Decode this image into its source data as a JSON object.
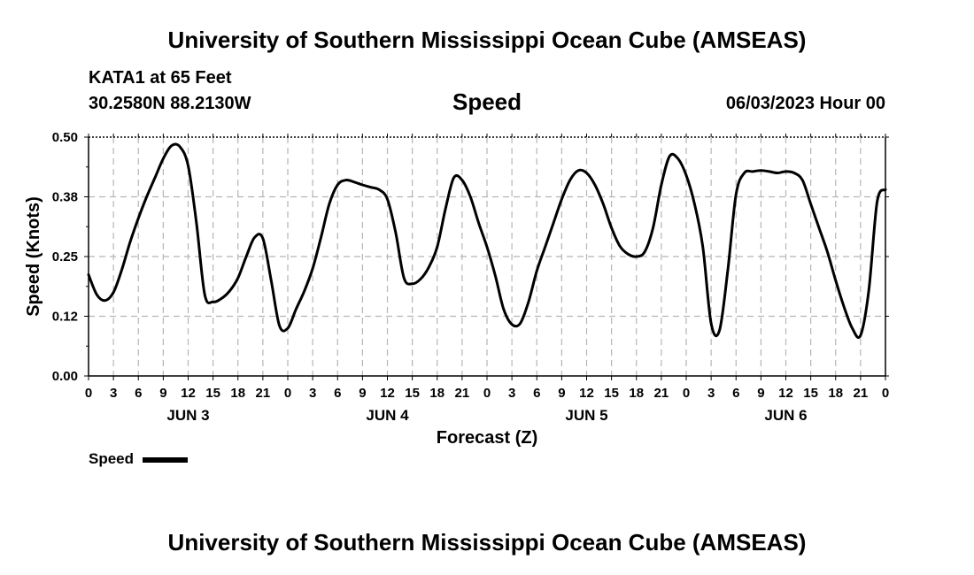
{
  "header": {
    "title": "University of Southern Mississippi Ocean Cube (AMSEAS)",
    "station": "KATA1 at 65 Feet",
    "coords": "30.2580N  88.2130W",
    "parameter": "Speed",
    "run_time": "06/03/2023 Hour 00"
  },
  "footer": {
    "title": "University of Southern Mississippi Ocean Cube (AMSEAS)"
  },
  "legend": {
    "label": "Speed"
  },
  "chart_data": {
    "type": "line",
    "title": "Speed",
    "xlabel": "Forecast (Z)",
    "ylabel": "Speed (Knots)",
    "xlim": [
      0,
      96
    ],
    "ylim": [
      0,
      0.5
    ],
    "grid": true,
    "y_ticks": [
      "0.00",
      "0.12",
      "0.25",
      "0.38",
      "0.50"
    ],
    "x_tick_labels": [
      "0",
      "3",
      "6",
      "9",
      "12",
      "15",
      "18",
      "21",
      "0",
      "3",
      "6",
      "9",
      "12",
      "15",
      "18",
      "21",
      "0",
      "3",
      "6",
      "9",
      "12",
      "15",
      "18",
      "21",
      "0",
      "3",
      "6",
      "9",
      "12",
      "15",
      "18",
      "21",
      "0"
    ],
    "day_labels": [
      {
        "label": "JUN 3",
        "hour": 12
      },
      {
        "label": "JUN 4",
        "hour": 36
      },
      {
        "label": "JUN 5",
        "hour": 60
      },
      {
        "label": "JUN 6",
        "hour": 84
      }
    ],
    "series": [
      {
        "name": "Speed",
        "x": [
          0,
          1,
          2,
          3,
          4,
          5,
          6,
          7,
          8,
          9,
          10,
          11,
          12,
          13,
          14,
          15,
          16,
          17,
          18,
          19,
          20,
          21,
          22,
          23,
          24,
          25,
          26,
          27,
          28,
          29,
          30,
          31,
          32,
          33,
          34,
          35,
          36,
          37,
          38,
          39,
          40,
          41,
          42,
          43,
          44,
          45,
          46,
          47,
          48,
          49,
          50,
          51,
          52,
          53,
          54,
          55,
          56,
          57,
          58,
          59,
          60,
          61,
          62,
          63,
          64,
          65,
          66,
          67,
          68,
          69,
          70,
          71,
          72,
          73,
          74,
          75,
          76,
          77,
          78,
          79,
          80,
          81,
          82,
          83,
          84,
          85,
          86,
          87,
          88,
          89,
          90,
          91,
          92,
          93,
          94,
          95,
          96
        ],
        "values": [
          0.212,
          0.17,
          0.158,
          0.175,
          0.222,
          0.28,
          0.33,
          0.375,
          0.415,
          0.455,
          0.482,
          0.48,
          0.44,
          0.32,
          0.17,
          0.155,
          0.162,
          0.178,
          0.205,
          0.25,
          0.29,
          0.288,
          0.2,
          0.105,
          0.1,
          0.14,
          0.178,
          0.225,
          0.29,
          0.36,
          0.4,
          0.41,
          0.406,
          0.4,
          0.395,
          0.39,
          0.37,
          0.3,
          0.205,
          0.193,
          0.203,
          0.228,
          0.27,
          0.35,
          0.415,
          0.41,
          0.375,
          0.32,
          0.27,
          0.21,
          0.14,
          0.108,
          0.11,
          0.155,
          0.22,
          0.27,
          0.32,
          0.37,
          0.41,
          0.43,
          0.425,
          0.4,
          0.36,
          0.31,
          0.272,
          0.255,
          0.25,
          0.26,
          0.31,
          0.4,
          0.46,
          0.455,
          0.42,
          0.36,
          0.27,
          0.11,
          0.095,
          0.22,
          0.38,
          0.425,
          0.428,
          0.43,
          0.428,
          0.425,
          0.428,
          0.425,
          0.41,
          0.36,
          0.31,
          0.26,
          0.2,
          0.145,
          0.1,
          0.085,
          0.18,
          0.365,
          0.39
        ]
      }
    ]
  }
}
